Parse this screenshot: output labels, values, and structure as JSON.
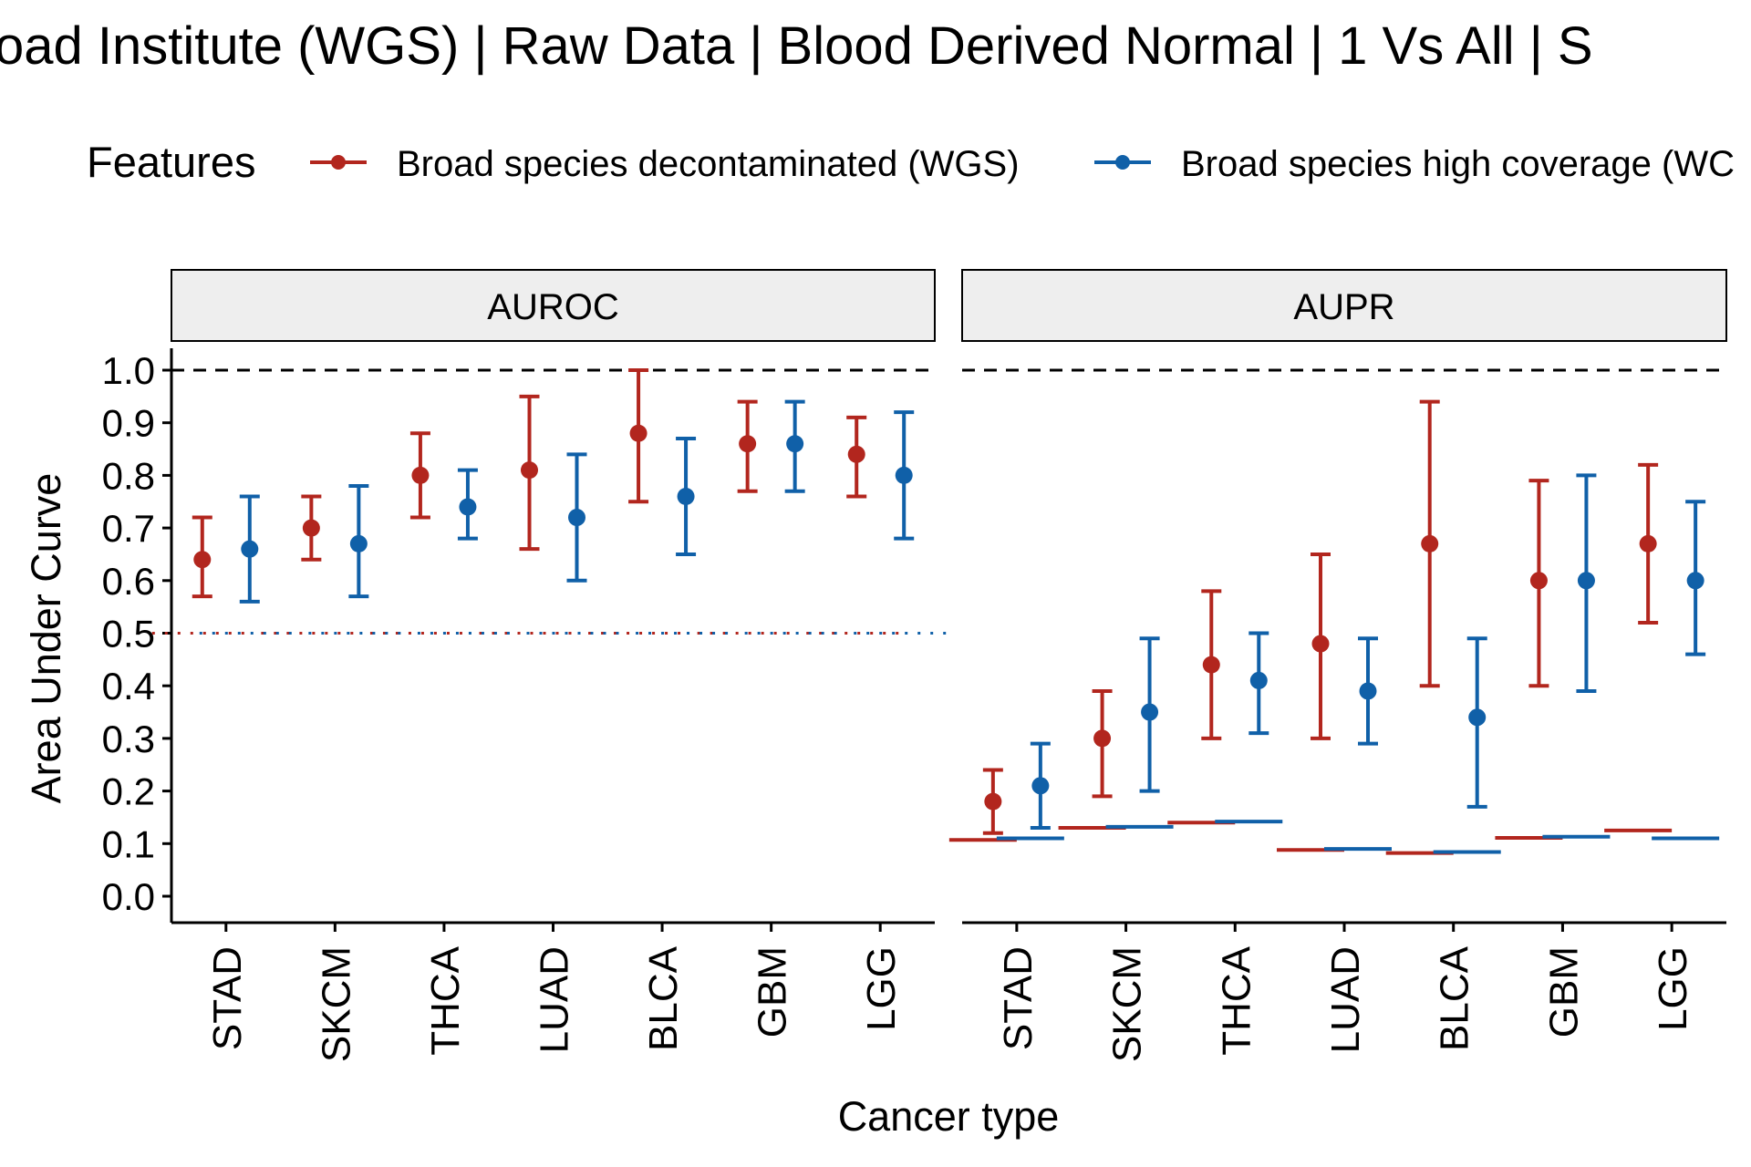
{
  "chart_data": {
    "type": "errorbar",
    "title": "oad Institute (WGS) | Raw Data | Blood Derived Normal | 1 Vs All | S",
    "xlabel": "Cancer type",
    "ylabel": "Area Under Curve",
    "legend": {
      "title": "Features",
      "position": "top",
      "entries": [
        {
          "name": "Broad species decontaminated (WGS)",
          "color": "#B2261E"
        },
        {
          "name": "Broad species high coverage (WC",
          "color": "#1060A8"
        }
      ]
    },
    "categories": [
      "STAD",
      "SKCM",
      "THCA",
      "LUAD",
      "BLCA",
      "GBM",
      "LGG"
    ],
    "ylim": [
      0,
      1.05
    ],
    "yticks": [
      "0.0",
      "0.1",
      "0.2",
      "0.3",
      "0.4",
      "0.5",
      "0.6",
      "0.7",
      "0.8",
      "0.9",
      "1.0"
    ],
    "reference_line": {
      "value": 1.0,
      "style": "dashed"
    },
    "grid": false,
    "facets": [
      {
        "name": "AUROC",
        "chance_line": {
          "value": 0.5,
          "style": "dotted"
        },
        "series": [
          {
            "name": "Broad species decontaminated (WGS)",
            "color": "#B2261E",
            "mean": [
              0.64,
              0.7,
              0.8,
              0.81,
              0.88,
              0.86,
              0.84
            ],
            "lower": [
              0.57,
              0.64,
              0.72,
              0.66,
              0.75,
              0.77,
              0.76
            ],
            "upper": [
              0.72,
              0.76,
              0.88,
              0.95,
              1.0,
              0.94,
              0.91
            ]
          },
          {
            "name": "Broad species high coverage (WC",
            "color": "#1060A8",
            "mean": [
              0.66,
              0.67,
              0.74,
              0.72,
              0.76,
              0.86,
              0.8
            ],
            "lower": [
              0.56,
              0.57,
              0.68,
              0.6,
              0.65,
              0.77,
              0.68
            ],
            "upper": [
              0.76,
              0.78,
              0.81,
              0.84,
              0.87,
              0.94,
              0.92
            ]
          }
        ]
      },
      {
        "name": "AUPR",
        "series": [
          {
            "name": "Broad species decontaminated (WGS)",
            "color": "#B2261E",
            "mean": [
              0.18,
              0.3,
              0.44,
              0.48,
              0.67,
              0.6,
              0.67
            ],
            "lower": [
              0.12,
              0.19,
              0.3,
              0.3,
              0.4,
              0.4,
              0.52
            ],
            "upper": [
              0.24,
              0.39,
              0.58,
              0.65,
              0.94,
              0.79,
              0.82
            ],
            "baseline": [
              0.107,
              0.13,
              0.14,
              0.088,
              0.082,
              0.111,
              0.125
            ]
          },
          {
            "name": "Broad species high coverage (WC",
            "color": "#1060A8",
            "mean": [
              0.21,
              0.35,
              0.41,
              0.39,
              0.34,
              0.6,
              0.6
            ],
            "lower": [
              0.13,
              0.2,
              0.31,
              0.29,
              0.17,
              0.39,
              0.46
            ],
            "upper": [
              0.29,
              0.49,
              0.5,
              0.49,
              0.49,
              0.8,
              0.75
            ],
            "baseline": [
              0.11,
              0.132,
              0.142,
              0.09,
              0.084,
              0.113,
              0.11
            ]
          }
        ]
      }
    ]
  }
}
